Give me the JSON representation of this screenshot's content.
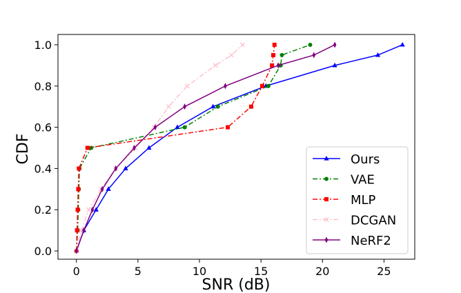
{
  "chart_data": {
    "type": "line",
    "title": "",
    "xlabel": "SNR (dB)",
    "ylabel": "CDF",
    "xlim": [
      -1.5,
      27.5
    ],
    "ylim": [
      -0.04,
      1.05
    ],
    "xticks": [
      0,
      5,
      10,
      15,
      20,
      25
    ],
    "xtick_labels": [
      "0",
      "5",
      "10",
      "15",
      "20",
      "25"
    ],
    "yticks": [
      0.0,
      0.2,
      0.4,
      0.6,
      0.8,
      1.0
    ],
    "ytick_labels": [
      "0.0",
      "0.2",
      "0.4",
      "0.6",
      "0.8",
      "1.0"
    ],
    "grid": false,
    "legend_position": "lower-right",
    "series": [
      {
        "name": "Ours",
        "color": "#0000ff",
        "dash": "solid",
        "marker": "triangle",
        "x": [
          0.0,
          0.6,
          1.6,
          2.6,
          4.0,
          5.9,
          8.2,
          11.1,
          15.4,
          21.0,
          24.5,
          26.5
        ],
        "y": [
          0.0,
          0.1,
          0.2,
          0.3,
          0.4,
          0.5,
          0.6,
          0.7,
          0.8,
          0.9,
          0.95,
          1.0
        ]
      },
      {
        "name": "VAE",
        "color": "#008000",
        "dash": "dashdot",
        "marker": "circle",
        "x": [
          0.0,
          0.1,
          0.15,
          0.2,
          0.25,
          1.2,
          8.8,
          11.5,
          15.6,
          16.6,
          16.7,
          19.0
        ],
        "y": [
          0.0,
          0.1,
          0.2,
          0.3,
          0.4,
          0.5,
          0.6,
          0.7,
          0.8,
          0.9,
          0.95,
          1.0
        ]
      },
      {
        "name": "MLP",
        "color": "#ff0000",
        "dash": "dashdot",
        "marker": "square",
        "x": [
          0.0,
          0.05,
          0.1,
          0.15,
          0.2,
          0.9,
          12.3,
          14.2,
          15.1,
          15.9,
          16.0,
          16.1
        ],
        "y": [
          0.0,
          0.1,
          0.2,
          0.3,
          0.4,
          0.5,
          0.6,
          0.7,
          0.8,
          0.9,
          0.95,
          1.0
        ]
      },
      {
        "name": "DCGAN",
        "color": "#ffc0cb",
        "dash": "dashdot",
        "marker": "x",
        "x": [
          0.0,
          0.4,
          1.0,
          2.0,
          3.2,
          4.8,
          6.3,
          7.5,
          9.0,
          11.3,
          12.6,
          13.5
        ],
        "y": [
          0.0,
          0.1,
          0.2,
          0.3,
          0.4,
          0.5,
          0.6,
          0.7,
          0.8,
          0.9,
          0.95,
          1.0
        ]
      },
      {
        "name": "NeRF2",
        "color": "#800080",
        "dash": "solid",
        "marker": "thin_diamond",
        "x": [
          0.0,
          0.6,
          1.3,
          2.1,
          3.2,
          4.7,
          6.4,
          8.8,
          12.1,
          16.4,
          19.3,
          21.0
        ],
        "y": [
          0.0,
          0.1,
          0.2,
          0.3,
          0.4,
          0.5,
          0.6,
          0.7,
          0.8,
          0.9,
          0.95,
          1.0
        ]
      }
    ]
  }
}
